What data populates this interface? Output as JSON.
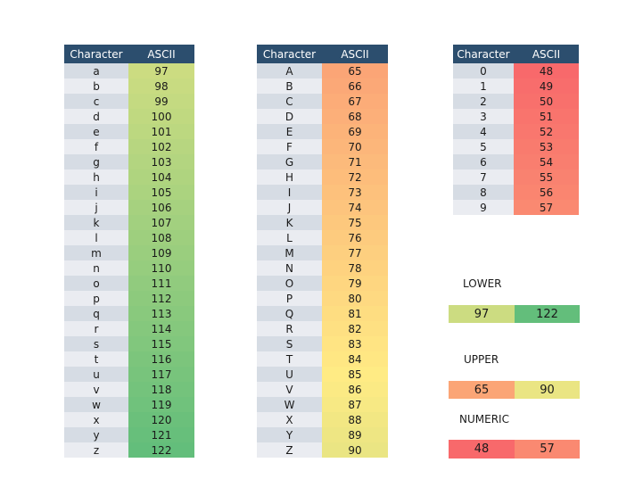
{
  "style_colors": {
    "page_bg": "#FFFFFF",
    "header_bg": "#2C4E6E",
    "header_text": "#FFFFFF",
    "row_band_dark": "#D6DCE4",
    "row_band_light": "#EAECF1",
    "cell_text": "#1A1A1A"
  },
  "color_scale": {
    "min_value": 48,
    "min_color": "#F8696B",
    "mid_value": 85,
    "mid_color": "#FFEB84",
    "max_value": 122,
    "max_color": "#63BE7B"
  },
  "tables": [
    {
      "name": "lowercase",
      "columns": [
        "Character",
        "ASCII"
      ],
      "rows": [
        [
          "a",
          97
        ],
        [
          "b",
          98
        ],
        [
          "c",
          99
        ],
        [
          "d",
          100
        ],
        [
          "e",
          101
        ],
        [
          "f",
          102
        ],
        [
          "g",
          103
        ],
        [
          "h",
          104
        ],
        [
          "i",
          105
        ],
        [
          "j",
          106
        ],
        [
          "k",
          107
        ],
        [
          "l",
          108
        ],
        [
          "m",
          109
        ],
        [
          "n",
          110
        ],
        [
          "o",
          111
        ],
        [
          "p",
          112
        ],
        [
          "q",
          113
        ],
        [
          "r",
          114
        ],
        [
          "s",
          115
        ],
        [
          "t",
          116
        ],
        [
          "u",
          117
        ],
        [
          "v",
          118
        ],
        [
          "w",
          119
        ],
        [
          "x",
          120
        ],
        [
          "y",
          121
        ],
        [
          "z",
          122
        ]
      ]
    },
    {
      "name": "uppercase",
      "columns": [
        "Character",
        "ASCII"
      ],
      "rows": [
        [
          "A",
          65
        ],
        [
          "B",
          66
        ],
        [
          "C",
          67
        ],
        [
          "D",
          68
        ],
        [
          "E",
          69
        ],
        [
          "F",
          70
        ],
        [
          "G",
          71
        ],
        [
          "H",
          72
        ],
        [
          "I",
          73
        ],
        [
          "J",
          74
        ],
        [
          "K",
          75
        ],
        [
          "L",
          76
        ],
        [
          "M",
          77
        ],
        [
          "N",
          78
        ],
        [
          "O",
          79
        ],
        [
          "P",
          80
        ],
        [
          "Q",
          81
        ],
        [
          "R",
          82
        ],
        [
          "S",
          83
        ],
        [
          "T",
          84
        ],
        [
          "U",
          85
        ],
        [
          "V",
          86
        ],
        [
          "W",
          87
        ],
        [
          "X",
          88
        ],
        [
          "Y",
          89
        ],
        [
          "Z",
          90
        ]
      ]
    },
    {
      "name": "digits",
      "columns": [
        "Character",
        "ASCII"
      ],
      "rows": [
        [
          "0",
          48
        ],
        [
          "1",
          49
        ],
        [
          "2",
          50
        ],
        [
          "3",
          51
        ],
        [
          "4",
          52
        ],
        [
          "5",
          53
        ],
        [
          "6",
          54
        ],
        [
          "7",
          55
        ],
        [
          "8",
          56
        ],
        [
          "9",
          57
        ]
      ]
    }
  ],
  "legends": [
    {
      "label": "LOWER",
      "min": 97,
      "max": 122
    },
    {
      "label": "UPPER",
      "min": 65,
      "max": 90
    },
    {
      "label": "NUMERIC",
      "min": 48,
      "max": 57
    }
  ]
}
